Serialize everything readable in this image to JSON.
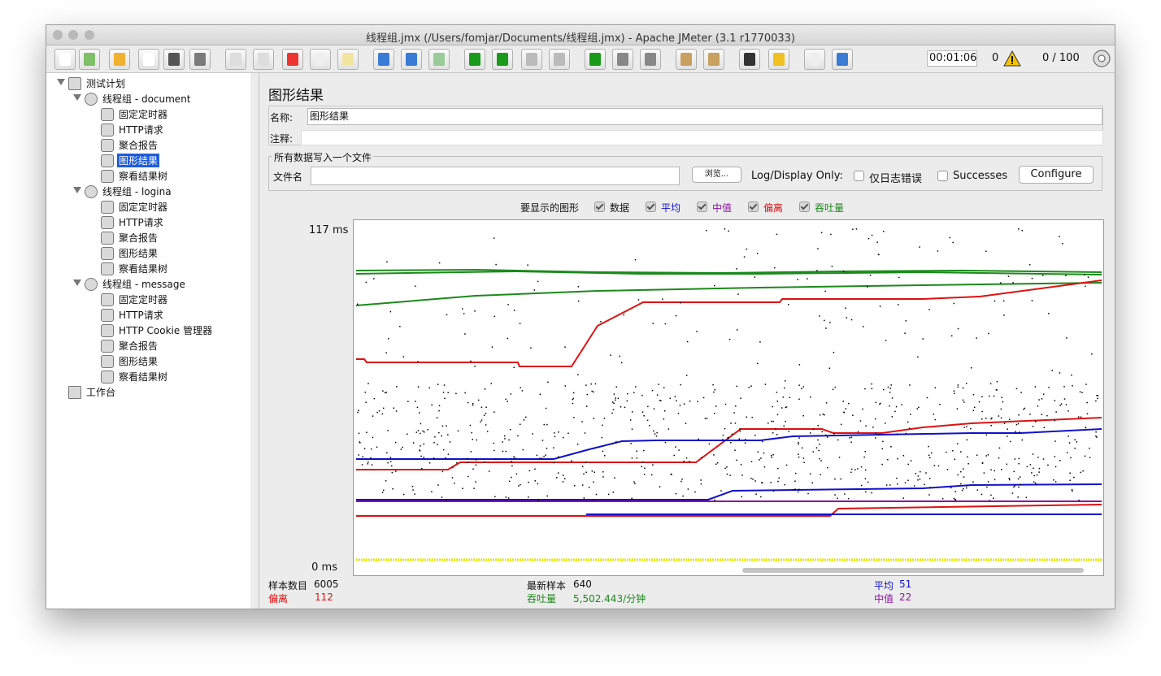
{
  "window": {
    "title": "线程组.jmx (/Users/fomjar/Documents/线程组.jmx) - Apache JMeter (3.1 r1770033)"
  },
  "toolbar": {
    "timer": "00:01:06",
    "errors": "0",
    "threads": "0 / 100"
  },
  "tree": {
    "root": "测试计划",
    "groups": [
      {
        "label": "线程组 - document",
        "children": [
          "固定定时器",
          "HTTP请求",
          "聚合报告",
          "图形结果",
          "察看结果树"
        ]
      },
      {
        "label": "线程组 - logina",
        "children": [
          "固定定时器",
          "HTTP请求",
          "聚合报告",
          "图形结果",
          "察看结果树"
        ]
      },
      {
        "label": "线程组 - message",
        "children": [
          "固定定时器",
          "HTTP请求",
          "HTTP Cookie 管理器",
          "聚合报告",
          "图形结果",
          "察看结果树"
        ]
      }
    ],
    "workbench": "工作台"
  },
  "panel": {
    "title": "图形结果",
    "name_label": "名称:",
    "name_value": "图形结果",
    "comment_label": "注释:",
    "file_section": "所有数据写入一个文件",
    "file_label": "文件名",
    "browse": "浏览...",
    "log_display": "Log/Display Only:",
    "errors_only": "仅日志错误",
    "successes": "Successes",
    "configure": "Configure",
    "graphs_label": "要显示的图形",
    "graph_options": [
      "数据",
      "平均",
      "中值",
      "偏离",
      "吞吐量"
    ]
  },
  "chart": {
    "y_max_label": "117 ms",
    "y_min_label": "0 ms"
  },
  "stats": {
    "samples_label": "样本数目",
    "samples": 6005,
    "latest_label": "最新样本",
    "latest": 640,
    "average_label": "平均",
    "average": 51,
    "deviation_label": "偏离",
    "deviation": 112,
    "throughput_label": "吞吐量",
    "throughput": "5,502.443/分钟",
    "median_label": "中值",
    "median": 22
  }
}
